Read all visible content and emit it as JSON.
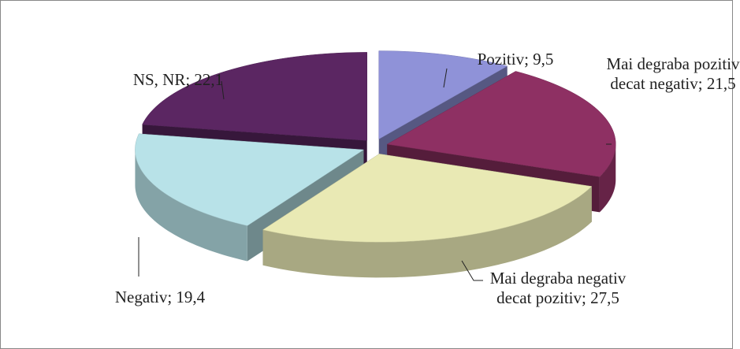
{
  "chart_data": {
    "type": "pie3d",
    "values": [
      9.5,
      21.5,
      27.5,
      19.4,
      22.1
    ],
    "value_labels": [
      "Pozitiv; 9,5",
      "Mai degraba pozitiv decat negativ; 21,5",
      "Mai degraba negativ decat pozitiv; 27,5",
      "Negativ; 19,4",
      "NS, NR; 22,1"
    ],
    "colors": [
      "#8f92d8",
      "#8e3063",
      "#e9e9b4",
      "#b8e2e8",
      "#5b2662"
    ]
  }
}
